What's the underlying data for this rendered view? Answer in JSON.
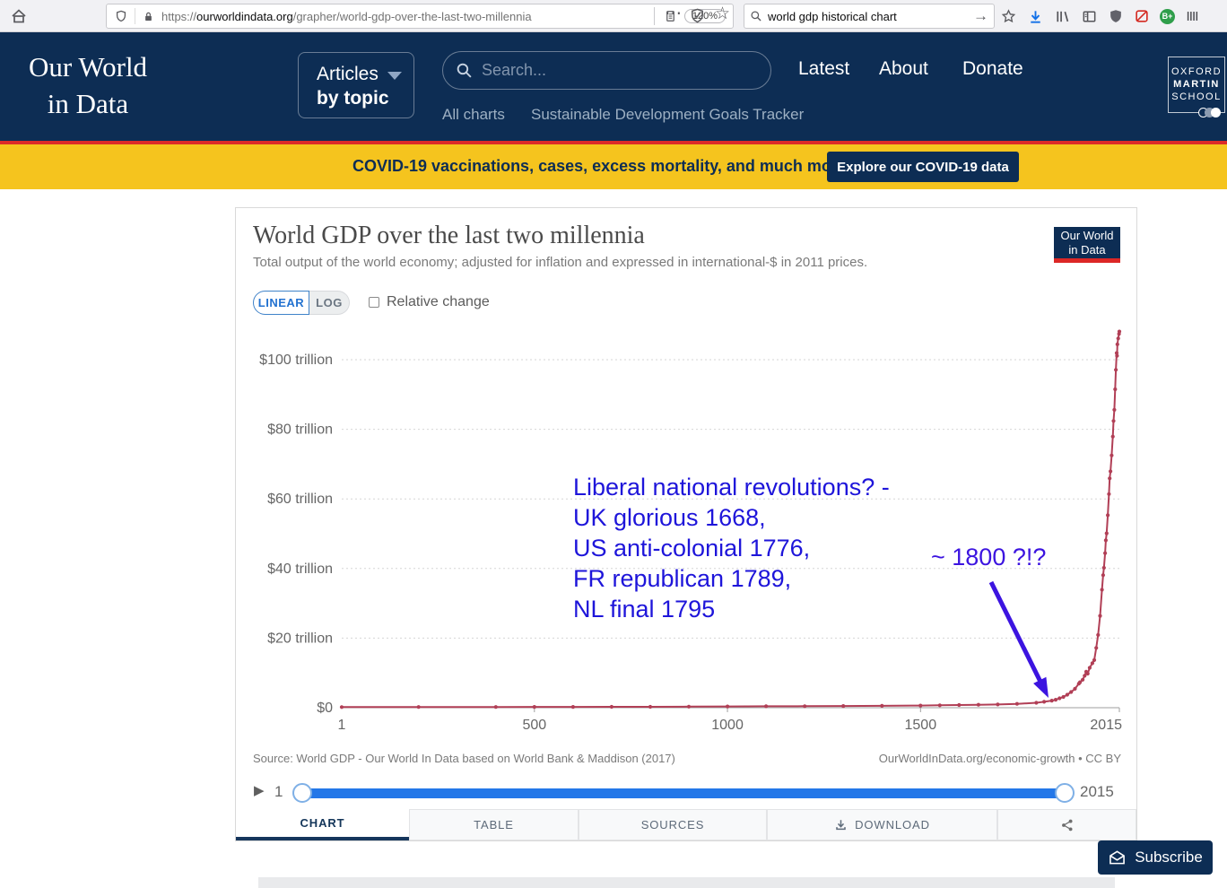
{
  "browser": {
    "url_scheme": "https://",
    "url_host": "ourworldindata.org",
    "url_path": "/grapher/world-gdp-over-the-last-two-millennia",
    "zoom_badge": "120%",
    "search_value": "world gdp historical chart",
    "extension_badge": "B+"
  },
  "icons": {
    "menu_dots": "⋯",
    "star": "☆",
    "play": "▶",
    "go_arrow": "→"
  },
  "site_header": {
    "logo_line1": "Our World",
    "logo_line2": "in Data",
    "articles_line1": "Articles",
    "articles_line2": "by topic",
    "search_placeholder": "Search...",
    "nav": [
      "Latest",
      "About",
      "Donate"
    ],
    "sub_nav": [
      "All charts",
      "Sustainable Development Goals Tracker"
    ],
    "oxford": [
      "OXFORD",
      "MARTIN",
      "SCHOOL"
    ]
  },
  "banner": {
    "text": "COVID-19 vaccinations, cases, excess mortality, and much more",
    "button": "Explore our COVID-19 data"
  },
  "chart_card": {
    "title": "World GDP over the last two millennia",
    "subtitle": "Total output of the world economy; adjusted for inflation and expressed in international-$ in 2011 prices.",
    "scale_linear": "LINEAR",
    "scale_log": "LOG",
    "relative_change_label": "Relative change",
    "logo_line1": "Our World",
    "logo_line2": "in Data",
    "source_left": "Source: World GDP - Our World In Data based on World Bank & Maddison (2017)",
    "source_right": "OurWorldInData.org/economic-growth • CC BY",
    "timeline": {
      "start_label": "1",
      "end_label": "2015"
    },
    "tabs": [
      "CHART",
      "TABLE",
      "SOURCES",
      "DOWNLOAD"
    ]
  },
  "annotations": {
    "block_color": "#1e15da",
    "arrow_color": "#3c14e0",
    "block_lines": [
      "Liberal national revolutions? -",
      "UK glorious 1668,",
      "US anti-colonial 1776,",
      "FR republican 1789,",
      "NL final 1795"
    ],
    "arrow_label": "~ 1800 ?!?"
  },
  "subscribe_label": "Subscribe",
  "colors": {
    "navy": "#0d2d54",
    "banner_yellow": "#f5c41e",
    "line_red": "#b13f56",
    "slider_blue": "#2377e8",
    "accent_red": "#dc2a28"
  },
  "chart_data": {
    "type": "line",
    "title": "World GDP over the last two millennia",
    "y_unit": "trillion international-$ (2011 prices)",
    "xlim": [
      1,
      2015
    ],
    "ylim": [
      0,
      110
    ],
    "grid": "dashed-horizontal",
    "legend": "none",
    "y_ticks": [
      {
        "value": 0,
        "label": "$0"
      },
      {
        "value": 20,
        "label": "$20 trillion"
      },
      {
        "value": 40,
        "label": "$40 trillion"
      },
      {
        "value": 60,
        "label": "$60 trillion"
      },
      {
        "value": 80,
        "label": "$80 trillion"
      },
      {
        "value": 100,
        "label": "$100 trillion"
      }
    ],
    "x_ticks": [
      {
        "value": 1,
        "label": "1",
        "mark": false
      },
      {
        "value": 500,
        "label": "500",
        "mark": true
      },
      {
        "value": 1000,
        "label": "1000",
        "mark": true
      },
      {
        "value": 1500,
        "label": "1500",
        "mark": true
      },
      {
        "value": 2015,
        "label": "2015",
        "mark": true
      }
    ],
    "series": [
      {
        "name": "World GDP",
        "color": "#b13f56",
        "points": [
          [
            1,
            0.18
          ],
          [
            200,
            0.2
          ],
          [
            400,
            0.21
          ],
          [
            500,
            0.22
          ],
          [
            600,
            0.24
          ],
          [
            700,
            0.25
          ],
          [
            800,
            0.27
          ],
          [
            900,
            0.3
          ],
          [
            1000,
            0.35
          ],
          [
            1100,
            0.4
          ],
          [
            1200,
            0.44
          ],
          [
            1300,
            0.48
          ],
          [
            1400,
            0.54
          ],
          [
            1500,
            0.62
          ],
          [
            1550,
            0.69
          ],
          [
            1600,
            0.78
          ],
          [
            1650,
            0.85
          ],
          [
            1700,
            0.92
          ],
          [
            1750,
            1.11
          ],
          [
            1800,
            1.41
          ],
          [
            1820,
            1.7
          ],
          [
            1840,
            2.03
          ],
          [
            1850,
            2.29
          ],
          [
            1860,
            2.71
          ],
          [
            1870,
            3.09
          ],
          [
            1880,
            3.74
          ],
          [
            1890,
            4.52
          ],
          [
            1900,
            5.45
          ],
          [
            1910,
            6.9
          ],
          [
            1913,
            7.33
          ],
          [
            1920,
            8.03
          ],
          [
            1925,
            9.18
          ],
          [
            1929,
            10.33
          ],
          [
            1933,
            9.8
          ],
          [
            1938,
            11.48
          ],
          [
            1945,
            12.79
          ],
          [
            1950,
            13.68
          ],
          [
            1955,
            17.2
          ],
          [
            1960,
            20.9
          ],
          [
            1965,
            26.4
          ],
          [
            1970,
            33.9
          ],
          [
            1973,
            38.1
          ],
          [
            1975,
            40.2
          ],
          [
            1978,
            44.4
          ],
          [
            1980,
            48.1
          ],
          [
            1982,
            50.1
          ],
          [
            1985,
            55.3
          ],
          [
            1988,
            61.4
          ],
          [
            1990,
            65.9
          ],
          [
            1992,
            67.9
          ],
          [
            1995,
            72.5
          ],
          [
            1998,
            77.9
          ],
          [
            2000,
            82.4
          ],
          [
            2002,
            85.6
          ],
          [
            2004,
            91.5
          ],
          [
            2006,
            97.1
          ],
          [
            2008,
            101.9
          ],
          [
            2009,
            101.1
          ],
          [
            2010,
            104.4
          ],
          [
            2012,
            106.1
          ],
          [
            2014,
            107.4
          ],
          [
            2015,
            108.1
          ]
        ]
      }
    ]
  }
}
